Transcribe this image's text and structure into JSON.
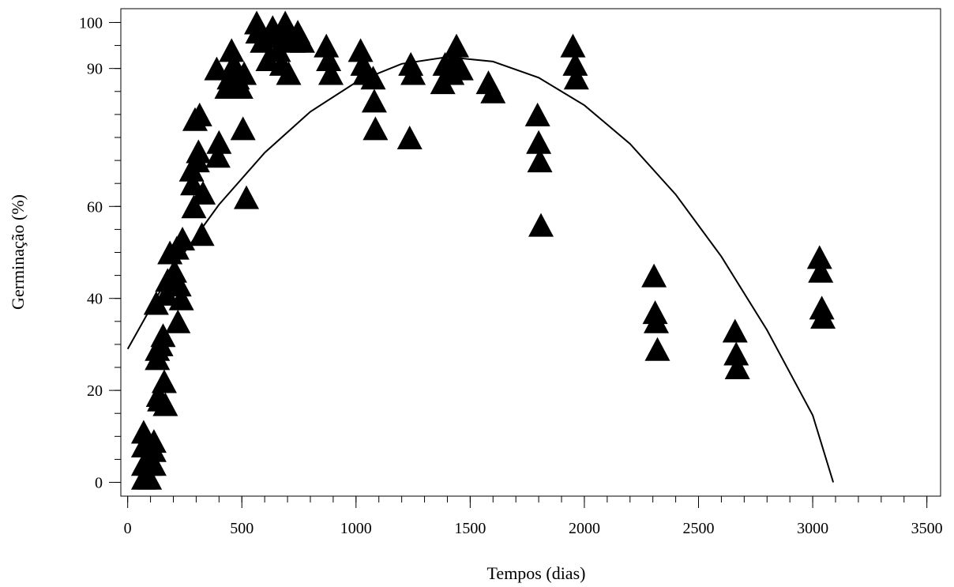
{
  "chart_data": {
    "type": "scatter",
    "xlabel": "Tempos (dias)",
    "ylabel": "Germinação (%)",
    "xlim": [
      -30,
      3560
    ],
    "ylim": [
      -3,
      103
    ],
    "x_ticks": [
      0,
      500,
      1000,
      1500,
      2000,
      2500,
      3000,
      3500
    ],
    "x_tick_labels": [
      "0",
      "500",
      "1000",
      "1500",
      "2000",
      "2500",
      "3000",
      "3500"
    ],
    "y_ticks": [
      0,
      20,
      40,
      60,
      90,
      100
    ],
    "y_tick_labels": [
      "0",
      "20",
      "40",
      "60",
      "90",
      "100"
    ],
    "marker": "triangle",
    "marker_color": "#000000",
    "line_color": "#000000",
    "grid": false,
    "legend": "none",
    "series": [
      {
        "type": "scatter",
        "points": [
          [
            70,
            11
          ],
          [
            70,
            8
          ],
          [
            70,
            4
          ],
          [
            70,
            1
          ],
          [
            95,
            8
          ],
          [
            95,
            4
          ],
          [
            95,
            1
          ],
          [
            115,
            9
          ],
          [
            115,
            7
          ],
          [
            115,
            4
          ],
          [
            125,
            39
          ],
          [
            130,
            29
          ],
          [
            130,
            27
          ],
          [
            135,
            19
          ],
          [
            140,
            18
          ],
          [
            145,
            30
          ],
          [
            155,
            32
          ],
          [
            160,
            22
          ],
          [
            165,
            17
          ],
          [
            170,
            41
          ],
          [
            175,
            44
          ],
          [
            185,
            50
          ],
          [
            200,
            45
          ],
          [
            205,
            46
          ],
          [
            215,
            51
          ],
          [
            220,
            35
          ],
          [
            225,
            43
          ],
          [
            235,
            40
          ],
          [
            240,
            53
          ],
          [
            280,
            68
          ],
          [
            285,
            65
          ],
          [
            290,
            60
          ],
          [
            295,
            79
          ],
          [
            305,
            70
          ],
          [
            310,
            72
          ],
          [
            315,
            80
          ],
          [
            325,
            54
          ],
          [
            330,
            63
          ],
          [
            390,
            90
          ],
          [
            395,
            71
          ],
          [
            400,
            74
          ],
          [
            435,
            86
          ],
          [
            445,
            88
          ],
          [
            455,
            94
          ],
          [
            465,
            91
          ],
          [
            480,
            88
          ],
          [
            495,
            86
          ],
          [
            505,
            77
          ],
          [
            510,
            89
          ],
          [
            520,
            62
          ],
          [
            565,
            100
          ],
          [
            570,
            98
          ],
          [
            590,
            96
          ],
          [
            615,
            92
          ],
          [
            635,
            99
          ],
          [
            640,
            97
          ],
          [
            660,
            94
          ],
          [
            675,
            91
          ],
          [
            690,
            100
          ],
          [
            700,
            97
          ],
          [
            705,
            89
          ],
          [
            725,
            96
          ],
          [
            745,
            98
          ],
          [
            765,
            96
          ],
          [
            870,
            95
          ],
          [
            880,
            92
          ],
          [
            890,
            89
          ],
          [
            1020,
            94
          ],
          [
            1030,
            91
          ],
          [
            1040,
            89
          ],
          [
            1075,
            88
          ],
          [
            1080,
            83
          ],
          [
            1085,
            77
          ],
          [
            1235,
            75
          ],
          [
            1240,
            91
          ],
          [
            1250,
            89
          ],
          [
            1380,
            87
          ],
          [
            1390,
            91
          ],
          [
            1420,
            89
          ],
          [
            1430,
            92
          ],
          [
            1440,
            95
          ],
          [
            1460,
            90
          ],
          [
            1580,
            87
          ],
          [
            1600,
            85
          ],
          [
            1795,
            80
          ],
          [
            1800,
            74
          ],
          [
            1805,
            70
          ],
          [
            1810,
            56
          ],
          [
            1950,
            95
          ],
          [
            1960,
            91
          ],
          [
            1965,
            88
          ],
          [
            2305,
            45
          ],
          [
            2310,
            37
          ],
          [
            2315,
            35
          ],
          [
            2320,
            29
          ],
          [
            2660,
            33
          ],
          [
            2665,
            28
          ],
          [
            2670,
            25
          ],
          [
            3030,
            49
          ],
          [
            3035,
            46
          ],
          [
            3040,
            38
          ],
          [
            3045,
            36
          ]
        ]
      },
      {
        "type": "line",
        "name": "",
        "x": [
          0,
          200,
          400,
          600,
          800,
          1000,
          1200,
          1400,
          1600,
          1800,
          2000,
          2200,
          2400,
          2600,
          2800,
          3000,
          3090
        ],
        "y": [
          29,
          46.7,
          60.4,
          71.7,
          80.6,
          87,
          91,
          92.5,
          91.5,
          88,
          82,
          73.6,
          62.6,
          49.1,
          33.1,
          14.6,
          0
        ]
      }
    ]
  }
}
